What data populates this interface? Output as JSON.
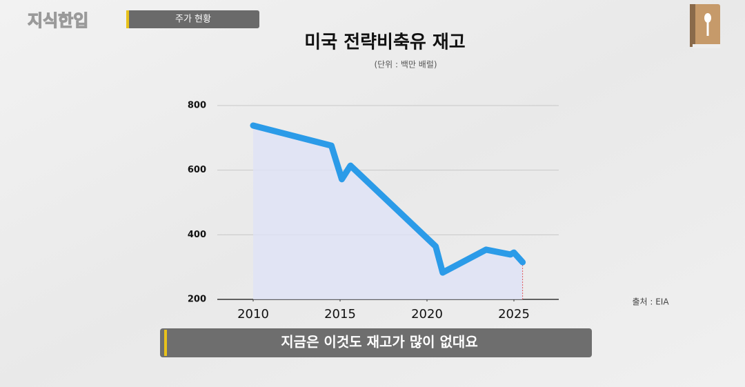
{
  "header": {
    "logo": "지식한입",
    "tag": "주가 현황"
  },
  "chart_data": {
    "type": "line",
    "title": "미국 전략비축유 재고",
    "subtitle": "(단위 : 백만 배럴)",
    "source": "출처 : EIA",
    "x": [
      2010,
      2014.5,
      2015.1,
      2015.6,
      2020.5,
      2020.9,
      2023.4,
      2024.8,
      2025.0,
      2025.5
    ],
    "values": [
      738,
      676,
      572,
      614,
      364,
      283,
      354,
      339,
      345,
      315
    ],
    "color": "#2b9be8",
    "area": true,
    "xlim": [
      2008,
      2028
    ],
    "ylim": [
      200,
      800
    ],
    "xticks": [
      2010,
      2015,
      2020,
      2025
    ],
    "yticks": [
      200,
      400,
      600,
      800
    ],
    "grid": true
  },
  "caption": "지금은 이것도 재고가 많이 없대요"
}
